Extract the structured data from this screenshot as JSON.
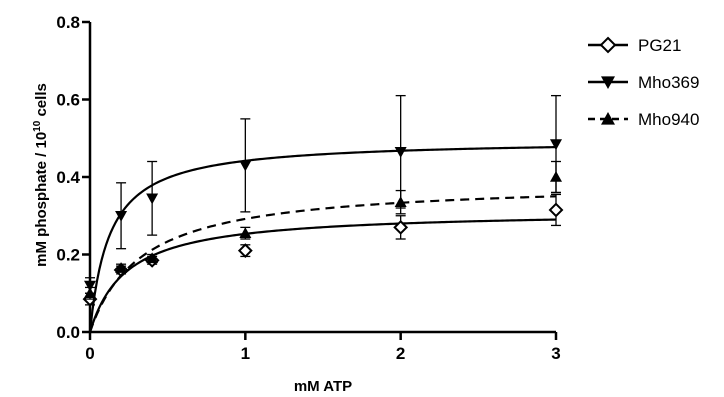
{
  "chart_data": {
    "type": "scatter",
    "title": "",
    "xlabel": "mM ATP",
    "ylabel": "mM phosphate / 10",
    "ylabel_superscript": "10",
    "ylabel_suffix": "cells",
    "xlim": [
      0,
      3
    ],
    "ylim": [
      0,
      0.8
    ],
    "x_ticks": [
      0,
      1,
      2,
      3
    ],
    "x_tick_labels": [
      "0",
      "1",
      "2",
      "3"
    ],
    "y_ticks": [
      0,
      0.2,
      0.4,
      0.6,
      0.8
    ],
    "y_tick_labels": [
      "0.0",
      "0.2",
      "0.4",
      "0.6",
      "0.8"
    ],
    "grid": false,
    "legend_position": "right",
    "fit": "Michaelis-Menten",
    "series": [
      {
        "name": "PG21",
        "marker": "diamond-open",
        "line": "solid",
        "x": [
          0,
          0.2,
          0.4,
          1,
          2,
          3
        ],
        "y": [
          0.085,
          0.16,
          0.185,
          0.21,
          0.27,
          0.315
        ],
        "err": [
          0.015,
          0.01,
          0.01,
          0.015,
          0.03,
          0.04
        ],
        "fit_vmax": 0.313,
        "fit_km": 0.236
      },
      {
        "name": "Mho369",
        "marker": "triangle-down",
        "line": "solid",
        "x": [
          0,
          0.2,
          0.4,
          1,
          2,
          3
        ],
        "y": [
          0.12,
          0.3,
          0.345,
          0.43,
          0.465,
          0.485
        ],
        "err": [
          0.02,
          0.085,
          0.095,
          0.12,
          0.145,
          0.125
        ],
        "fit_vmax": 0.497,
        "fit_km": 0.125
      },
      {
        "name": "Mho940",
        "marker": "triangle-up",
        "line": "dashed",
        "x": [
          0,
          0.2,
          0.4,
          1,
          2,
          3
        ],
        "y": [
          0.1,
          0.165,
          0.19,
          0.255,
          0.335,
          0.4
        ],
        "err": [
          0.015,
          0.01,
          0.01,
          0.015,
          0.03,
          0.04
        ],
        "fit_vmax": 0.389,
        "fit_km": 0.333
      }
    ]
  }
}
